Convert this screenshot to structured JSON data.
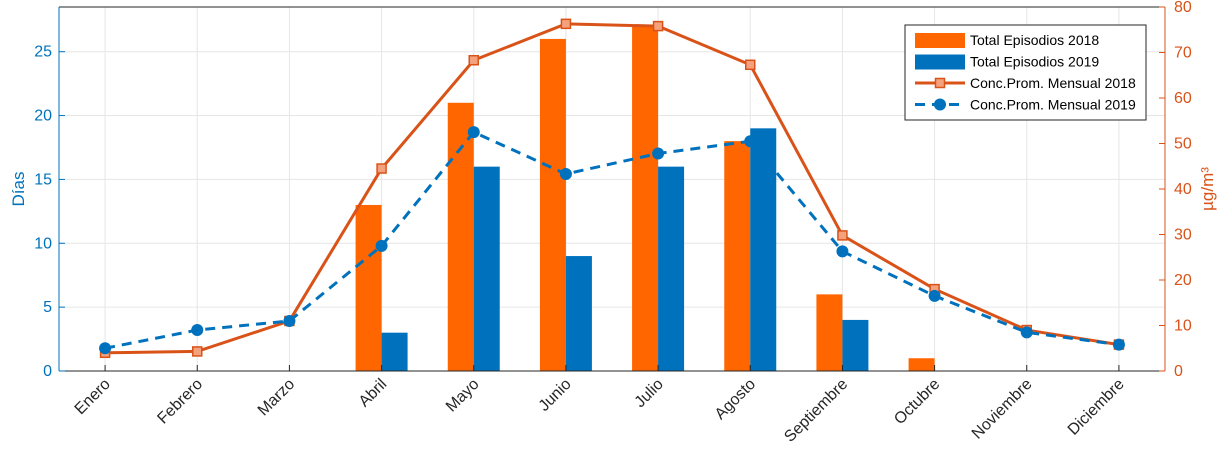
{
  "chart_data": {
    "type": "bar",
    "categories": [
      "Enero",
      "Febrero",
      "Marzo",
      "Abril",
      "Mayo",
      "Junio",
      "Julio",
      "Agosto",
      "Septiembre",
      "Octubre",
      "Noviembre",
      "Diciembre"
    ],
    "left_axis": {
      "label": "Días",
      "ylim": [
        0,
        28.5
      ],
      "ticks": [
        0,
        5,
        10,
        15,
        20,
        25
      ],
      "color": "#0072BD"
    },
    "right_axis": {
      "label": "µg/m³",
      "ylim": [
        0,
        80
      ],
      "ticks": [
        0,
        10,
        20,
        30,
        40,
        50,
        60,
        70,
        80
      ],
      "color": "#D95319"
    },
    "bars": [
      {
        "name": "Total Episodios 2018",
        "color": "#FF6600",
        "axis": "left",
        "values": [
          0,
          0,
          0,
          13,
          21,
          26,
          27,
          18,
          6,
          1,
          0,
          0
        ]
      },
      {
        "name": "Total Episodios 2019",
        "color": "#0072BD",
        "axis": "left",
        "values": [
          0,
          0,
          0,
          3,
          16,
          9,
          16,
          19,
          4,
          0,
          0,
          0
        ]
      }
    ],
    "lines": [
      {
        "name": "Conc.Prom. Mensual 2018",
        "color": "#D95319",
        "axis": "right",
        "style": "solid",
        "marker": "square",
        "values": [
          4,
          4.3,
          11,
          44.5,
          68.3,
          76.3,
          75.8,
          67.3,
          29.8,
          18,
          9,
          5.8
        ]
      },
      {
        "name": "Conc.Prom. Mensual 2019",
        "color": "#0072BD",
        "axis": "right",
        "style": "dashed",
        "marker": "circle",
        "values": [
          5,
          9,
          11,
          27.5,
          52.5,
          43.3,
          47.8,
          50.5,
          26.3,
          16.5,
          8.5,
          5.8
        ]
      }
    ],
    "grid": true,
    "legend_position": "top-right"
  }
}
